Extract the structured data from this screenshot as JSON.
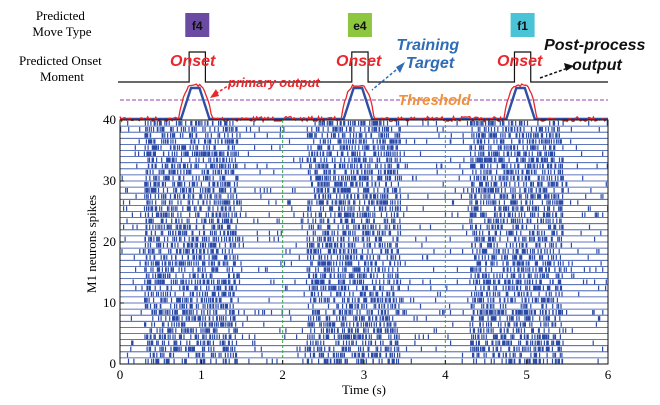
{
  "chart_data": {
    "type": "raster",
    "labels": {
      "predicted_move_type": "Predicted\nMove Type",
      "predicted_onset_moment": "Predicted Onset\nMoment"
    },
    "xlabel": "Time (s)",
    "ylabel": "M1 neurons spikes",
    "xlim": [
      0,
      6
    ],
    "ylim": [
      0,
      40
    ],
    "x_ticks": [
      "0",
      "1",
      "2",
      "3",
      "4",
      "5",
      "6"
    ],
    "y_ticks": [
      "0",
      "10",
      "20",
      "30",
      "40"
    ],
    "vertical_dashed_lines_x": [
      2,
      4
    ],
    "move_types": [
      {
        "label": "f4",
        "x": 0.95,
        "color": "#6a4aa3"
      },
      {
        "label": "e4",
        "x": 2.95,
        "color": "#8dc63f"
      },
      {
        "label": "f1",
        "x": 4.95,
        "color": "#4bc3d6"
      }
    ],
    "onset_pulses": [
      [
        0.85,
        1.05
      ],
      [
        2.85,
        3.05
      ],
      [
        4.85,
        5.05
      ]
    ],
    "training_target_windows": [
      [
        0.75,
        1.1
      ],
      [
        2.75,
        3.1
      ],
      [
        4.75,
        5.1
      ]
    ],
    "neuron_count": 40,
    "annotations": {
      "onset": "Onset",
      "primary_output": "primary output",
      "training_target": "Training\nTarget",
      "threshold": "Threshold",
      "post_process_output": "Post-process\noutput"
    },
    "colors": {
      "spikes": "#2b4aa6",
      "training_target": "#2e4fa3",
      "primary_output": "#e8262b",
      "threshold": "#9b3fb5",
      "onset_text": "#e8262b",
      "training_text": "#2e6db5",
      "threshold_text": "#f0913a",
      "post_process_text": "#111111"
    }
  }
}
